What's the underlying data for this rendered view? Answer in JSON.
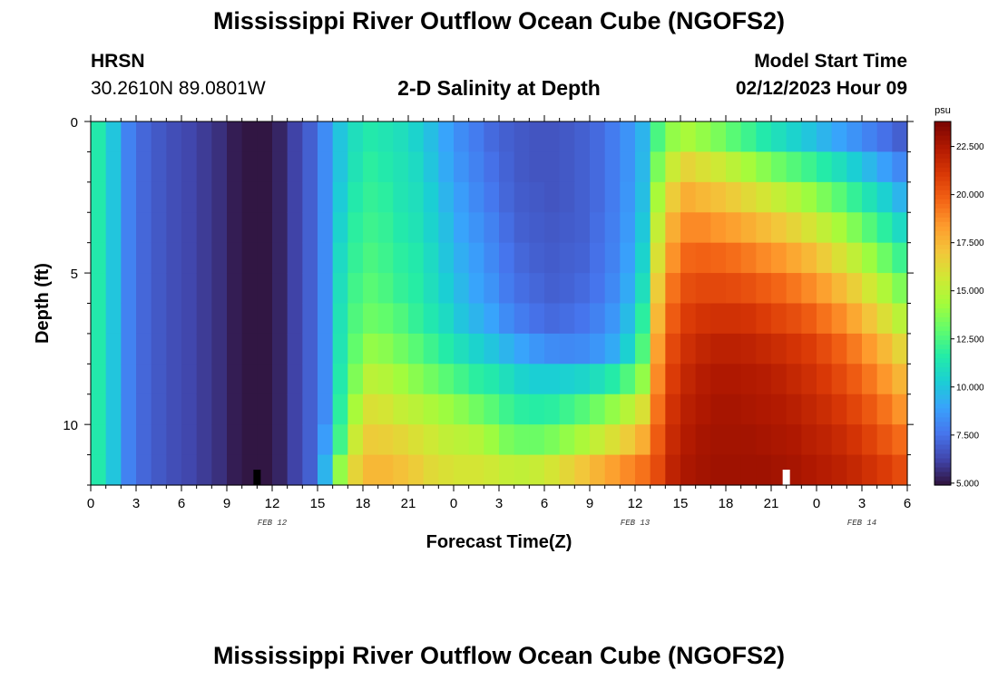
{
  "titles": {
    "main": "Mississippi River Outflow Ocean Cube (NGOFS2)",
    "repeat": "Mississippi River Outflow Ocean Cube (NGOFS2)"
  },
  "station": {
    "name": "HRSN",
    "coords": "30.2610N  89.0801W"
  },
  "subtitle": "2-D Salinity at Depth",
  "model_start": {
    "label": "Model Start Time",
    "value": "02/12/2023 Hour 09"
  },
  "chart_data": {
    "type": "heatmap",
    "title": "2-D Salinity at Depth",
    "xlabel": "Forecast Time(Z)",
    "ylabel": "Depth (ft)",
    "x_ticks": [
      "0",
      "3",
      "6",
      "9",
      "12",
      "15",
      "18",
      "21",
      "0",
      "3",
      "6",
      "9",
      "12",
      "15",
      "18",
      "21",
      "0",
      "3",
      "6"
    ],
    "x_range_hours": [
      0,
      54
    ],
    "date_labels": [
      {
        "label": "FEB 12",
        "hour": 12
      },
      {
        "label": "FEB 13",
        "hour": 36
      },
      {
        "label": "FEB 14",
        "hour": 51
      }
    ],
    "y_ticks": [
      0,
      5,
      10
    ],
    "y_range_ft": [
      0,
      12
    ],
    "colorbar": {
      "unit": "psu",
      "ticks": [
        "22.500",
        "20.000",
        "17.500",
        "15.000",
        "12.500",
        "10.000",
        "7.500",
        "5.000"
      ],
      "range": [
        4.9,
        23.8
      ],
      "colors": [
        "#30123b",
        "#4145ab",
        "#4675ed",
        "#39a2fc",
        "#1bcfd4",
        "#24eca6",
        "#61fc6c",
        "#a4fc3b",
        "#d1e834",
        "#f3c63a",
        "#fe9b2d",
        "#f36315",
        "#d93806",
        "#b11901",
        "#7a0402"
      ]
    },
    "markers": [
      {
        "hour": 11,
        "color": "#000000"
      },
      {
        "hour": 46,
        "color": "#ffffff"
      }
    ],
    "depth_levels_ft": [
      0.5,
      1.5,
      2.5,
      3.5,
      4.5,
      5.5,
      6.5,
      7.5,
      8.5,
      9.5,
      10.5,
      11.5
    ],
    "salinity_psu_by_hour": [
      [
        11.5,
        11.5,
        11.5,
        11.5,
        11.5,
        11.5,
        11.5,
        11.5,
        11.5,
        11.5,
        11.5,
        11.5
      ],
      [
        10.0,
        10.0,
        10.0,
        10.0,
        10.0,
        10.0,
        10.0,
        10.0,
        10.0,
        10.0,
        10.0,
        10.0
      ],
      [
        8.0,
        8.0,
        8.0,
        8.0,
        8.0,
        8.0,
        8.0,
        8.0,
        8.0,
        8.0,
        8.0,
        8.0
      ],
      [
        7.2,
        7.2,
        7.2,
        7.2,
        7.2,
        7.2,
        7.2,
        7.2,
        7.2,
        7.2,
        7.2,
        7.2
      ],
      [
        6.8,
        6.8,
        6.8,
        6.8,
        6.8,
        6.8,
        6.8,
        6.8,
        6.8,
        6.8,
        6.8,
        6.8
      ],
      [
        6.5,
        6.5,
        6.5,
        6.5,
        6.5,
        6.5,
        6.5,
        6.5,
        6.5,
        6.5,
        6.5,
        6.5
      ],
      [
        6.3,
        6.3,
        6.3,
        6.3,
        6.3,
        6.3,
        6.3,
        6.3,
        6.3,
        6.3,
        6.3,
        6.3
      ],
      [
        6.0,
        6.0,
        6.0,
        6.0,
        6.0,
        6.0,
        6.0,
        6.0,
        6.0,
        6.0,
        6.0,
        6.0
      ],
      [
        5.7,
        5.7,
        5.7,
        5.7,
        5.7,
        5.7,
        5.7,
        5.7,
        5.7,
        5.7,
        5.7,
        5.7
      ],
      [
        5.2,
        5.2,
        5.2,
        5.2,
        5.2,
        5.2,
        5.2,
        5.2,
        5.2,
        5.2,
        5.2,
        5.2
      ],
      [
        5.0,
        5.0,
        5.0,
        5.0,
        5.0,
        5.0,
        5.0,
        5.0,
        5.0,
        5.0,
        5.0,
        5.0
      ],
      [
        5.0,
        5.0,
        5.0,
        5.0,
        5.0,
        5.0,
        5.0,
        5.0,
        5.0,
        5.0,
        5.0,
        5.0
      ],
      [
        5.4,
        5.4,
        5.4,
        5.4,
        5.4,
        5.4,
        5.4,
        5.4,
        5.4,
        5.4,
        5.4,
        5.4
      ],
      [
        6.2,
        6.2,
        6.2,
        6.2,
        6.2,
        6.2,
        6.2,
        6.2,
        6.2,
        6.2,
        6.2,
        6.2
      ],
      [
        7.0,
        7.0,
        7.0,
        7.0,
        7.0,
        7.0,
        7.0,
        7.0,
        7.0,
        7.0,
        7.0,
        7.0
      ],
      [
        8.3,
        8.3,
        8.3,
        8.3,
        8.3,
        8.3,
        8.3,
        8.3,
        8.3,
        8.3,
        8.8,
        9.5
      ],
      [
        10.0,
        10.0,
        10.2,
        10.5,
        10.8,
        11.0,
        11.2,
        11.3,
        11.5,
        11.8,
        12.3,
        14.0
      ],
      [
        11.0,
        11.2,
        11.5,
        11.8,
        12.0,
        12.3,
        12.6,
        13.0,
        13.6,
        14.5,
        15.5,
        16.5
      ],
      [
        11.5,
        11.8,
        12.0,
        12.2,
        12.5,
        12.8,
        13.2,
        14.0,
        15.0,
        16.0,
        16.8,
        17.5
      ],
      [
        11.3,
        11.5,
        11.8,
        12.0,
        12.2,
        12.5,
        13.0,
        13.8,
        14.8,
        15.8,
        16.7,
        17.5
      ],
      [
        11.0,
        11.2,
        11.3,
        11.5,
        11.8,
        12.0,
        12.6,
        13.3,
        14.3,
        15.3,
        16.4,
        17.2
      ],
      [
        10.5,
        10.8,
        11.0,
        11.2,
        11.5,
        11.7,
        12.0,
        12.8,
        13.8,
        15.0,
        16.0,
        16.8
      ],
      [
        9.8,
        10.0,
        10.3,
        10.5,
        10.8,
        11.0,
        11.4,
        12.2,
        13.3,
        14.6,
        15.6,
        16.3
      ],
      [
        9.0,
        9.2,
        9.5,
        9.8,
        10.0,
        10.3,
        10.8,
        11.6,
        12.8,
        14.2,
        15.2,
        16.0
      ],
      [
        8.3,
        8.5,
        8.8,
        9.0,
        9.3,
        9.6,
        10.0,
        11.0,
        12.3,
        13.8,
        15.0,
        15.8
      ],
      [
        7.8,
        8.0,
        8.2,
        8.5,
        8.8,
        9.0,
        9.5,
        10.5,
        11.8,
        13.3,
        14.8,
        15.8
      ],
      [
        7.3,
        7.5,
        7.7,
        8.0,
        8.2,
        8.5,
        9.0,
        10.0,
        11.5,
        12.8,
        14.2,
        15.6
      ],
      [
        7.0,
        7.1,
        7.2,
        7.4,
        7.6,
        7.8,
        8.3,
        9.5,
        11.0,
        12.2,
        13.5,
        15.3
      ],
      [
        6.8,
        6.8,
        6.9,
        7.0,
        7.2,
        7.4,
        7.8,
        9.0,
        10.5,
        11.8,
        13.2,
        15.2
      ],
      [
        6.7,
        6.7,
        6.8,
        6.9,
        7.0,
        7.2,
        7.5,
        8.6,
        10.3,
        11.7,
        13.2,
        15.4
      ],
      [
        6.7,
        6.7,
        6.7,
        6.8,
        6.9,
        7.0,
        7.3,
        8.3,
        10.3,
        11.8,
        13.5,
        15.8
      ],
      [
        6.8,
        6.8,
        6.8,
        6.9,
        7.0,
        7.1,
        7.4,
        8.2,
        10.4,
        12.2,
        14.0,
        16.4
      ],
      [
        7.0,
        7.0,
        7.0,
        7.0,
        7.1,
        7.3,
        7.6,
        8.3,
        10.6,
        12.7,
        14.6,
        17.0
      ],
      [
        7.3,
        7.3,
        7.3,
        7.4,
        7.5,
        7.6,
        8.0,
        8.6,
        11.0,
        13.3,
        15.3,
        17.6
      ],
      [
        7.8,
        7.8,
        7.8,
        7.9,
        8.0,
        8.2,
        8.6,
        9.2,
        11.6,
        14.0,
        16.0,
        18.2
      ],
      [
        8.5,
        8.5,
        8.6,
        8.7,
        8.9,
        9.2,
        9.7,
        10.4,
        12.6,
        14.9,
        16.8,
        18.8
      ],
      [
        9.5,
        9.6,
        9.8,
        10.1,
        10.5,
        11.0,
        11.8,
        12.6,
        14.0,
        16.0,
        17.8,
        19.4
      ],
      [
        12.5,
        13.5,
        14.5,
        15.3,
        16.0,
        16.8,
        17.5,
        18.2,
        18.8,
        19.4,
        20.0,
        20.5
      ],
      [
        14.0,
        15.5,
        16.8,
        17.8,
        18.6,
        19.4,
        20.0,
        20.6,
        21.0,
        21.4,
        21.7,
        22.0
      ],
      [
        14.5,
        16.5,
        17.8,
        18.8,
        19.7,
        20.4,
        21.0,
        21.5,
        21.9,
        22.2,
        22.4,
        22.6
      ],
      [
        14.0,
        16.0,
        17.5,
        18.8,
        19.8,
        20.6,
        21.3,
        21.9,
        22.3,
        22.5,
        22.7,
        22.8
      ],
      [
        13.5,
        15.6,
        17.2,
        18.5,
        19.7,
        20.6,
        21.4,
        22.1,
        22.5,
        22.7,
        22.8,
        22.9
      ],
      [
        12.8,
        15.0,
        16.8,
        18.2,
        19.5,
        20.5,
        21.4,
        22.1,
        22.5,
        22.7,
        22.8,
        22.9
      ],
      [
        12.2,
        14.4,
        16.3,
        17.8,
        19.2,
        20.3,
        21.3,
        22.0,
        22.4,
        22.6,
        22.8,
        22.9
      ],
      [
        11.5,
        13.8,
        15.8,
        17.4,
        18.8,
        20.0,
        21.0,
        21.8,
        22.3,
        22.5,
        22.7,
        22.9
      ],
      [
        11.0,
        13.2,
        15.3,
        17.0,
        18.5,
        19.7,
        20.7,
        21.6,
        22.1,
        22.4,
        22.6,
        22.8
      ],
      [
        10.5,
        12.7,
        14.8,
        16.5,
        18.0,
        19.3,
        20.4,
        21.3,
        21.8,
        22.2,
        22.5,
        22.7
      ],
      [
        10.0,
        12.2,
        14.2,
        15.9,
        17.5,
        18.8,
        20.0,
        21.0,
        21.5,
        21.9,
        22.2,
        22.5
      ],
      [
        9.5,
        11.6,
        13.5,
        15.2,
        16.8,
        18.2,
        19.4,
        20.5,
        21.1,
        21.6,
        22.0,
        22.3
      ],
      [
        9.0,
        11.0,
        12.8,
        14.5,
        16.0,
        17.5,
        18.8,
        19.9,
        20.6,
        21.2,
        21.7,
        22.1
      ],
      [
        8.5,
        10.3,
        12.0,
        13.6,
        15.2,
        16.7,
        18.0,
        19.2,
        20.0,
        20.7,
        21.3,
        21.8
      ],
      [
        8.0,
        9.6,
        11.2,
        12.7,
        14.2,
        15.7,
        17.1,
        18.4,
        19.3,
        20.1,
        20.8,
        21.4
      ],
      [
        7.5,
        8.9,
        10.4,
        11.8,
        13.2,
        14.7,
        16.1,
        17.5,
        18.5,
        19.4,
        20.2,
        21.0
      ],
      [
        7.0,
        8.2,
        9.5,
        10.8,
        12.2,
        13.6,
        15.0,
        16.5,
        17.6,
        18.6,
        19.6,
        20.5
      ]
    ]
  }
}
